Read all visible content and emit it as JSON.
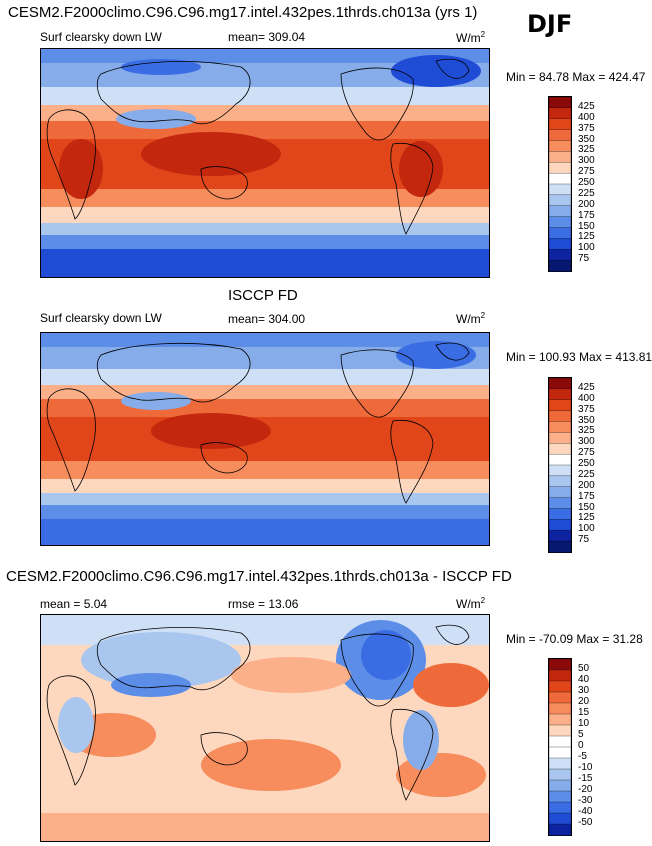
{
  "header": {
    "title": "CESM2.F2000climo.C96.C96.mg17.intel.432pes.1thrds.ch013a (yrs 1)",
    "season": "DJF"
  },
  "panels": [
    {
      "id": "model",
      "subtitle": "",
      "variable": "Surf clearsky down LW",
      "stat_label": "mean= 309.04",
      "units": "W/m",
      "units_sup": "2",
      "minmax": "Min =  84.78 Max = 424.47",
      "colorbar": {
        "levels": [
          "425",
          "400",
          "375",
          "350",
          "325",
          "300",
          "275",
          "250",
          "225",
          "200",
          "175",
          "150",
          "125",
          "100",
          "75"
        ],
        "colors": [
          "#8a0a0a",
          "#c3270e",
          "#e0461a",
          "#ef6a3a",
          "#f78c5c",
          "#fbb08a",
          "#fdd8bf",
          "#ffffff",
          "#cfe0f6",
          "#a9c6ee",
          "#86acea",
          "#5c8de7",
          "#3a6de3",
          "#1f4cd5",
          "#0d23a0",
          "#061870"
        ]
      }
    },
    {
      "id": "obs",
      "subtitle": "ISCCP FD",
      "variable": "Surf clearsky down LW",
      "stat_label": "mean= 304.00",
      "units": "W/m",
      "units_sup": "2",
      "minmax": "Min = 100.93 Max = 413.81",
      "colorbar": {
        "levels": [
          "425",
          "400",
          "375",
          "350",
          "325",
          "300",
          "275",
          "250",
          "225",
          "200",
          "175",
          "150",
          "125",
          "100",
          "75"
        ],
        "colors": [
          "#8a0a0a",
          "#c3270e",
          "#e0461a",
          "#ef6a3a",
          "#f78c5c",
          "#fbb08a",
          "#fdd8bf",
          "#ffffff",
          "#cfe0f6",
          "#a9c6ee",
          "#86acea",
          "#5c8de7",
          "#3a6de3",
          "#1f4cd5",
          "#0d23a0",
          "#061870"
        ]
      }
    },
    {
      "id": "diff",
      "subtitle": "CESM2.F2000climo.C96.C96.mg17.intel.432pes.1thrds.ch013a - ISCCP FD",
      "variable": "mean =   5.04",
      "stat_label": "rmse =  13.06",
      "units": "W/m",
      "units_sup": "2",
      "minmax": "Min = -70.09 Max =  31.28",
      "colorbar": {
        "levels": [
          "50",
          "40",
          "30",
          "20",
          "15",
          "10",
          "5",
          "0",
          "-5",
          "-10",
          "-15",
          "-20",
          "-30",
          "-40",
          "-50"
        ],
        "colors": [
          "#8a0a0a",
          "#c3270e",
          "#e0461a",
          "#ef6a3a",
          "#f78c5c",
          "#fbb08a",
          "#fdd8bf",
          "#ffffff",
          "#ffffff",
          "#cfe0f6",
          "#a9c6ee",
          "#86acea",
          "#5c8de7",
          "#3a6de3",
          "#1f4cd5",
          "#0d23a0"
        ]
      }
    }
  ],
  "chart_data": [
    {
      "type": "heatmap",
      "title": "Surf clearsky down LW",
      "model": "CESM2.F2000climo.C96.C96.mg17.intel.432pes.1thrds.ch013a (yrs 1)",
      "season": "DJF",
      "mean": 309.04,
      "min": 84.78,
      "max": 424.47,
      "units": "W/m2",
      "contour_levels": [
        75,
        100,
        125,
        150,
        175,
        200,
        225,
        250,
        275,
        300,
        325,
        350,
        375,
        400,
        425
      ]
    },
    {
      "type": "heatmap",
      "title": "Surf clearsky down LW",
      "dataset": "ISCCP FD",
      "season": "DJF",
      "mean": 304.0,
      "min": 100.93,
      "max": 413.81,
      "units": "W/m2",
      "contour_levels": [
        75,
        100,
        125,
        150,
        175,
        200,
        225,
        250,
        275,
        300,
        325,
        350,
        375,
        400,
        425
      ]
    },
    {
      "type": "heatmap",
      "title": "CESM2.F2000climo.C96.C96.mg17.intel.432pes.1thrds.ch013a - ISCCP FD",
      "season": "DJF",
      "mean": 5.04,
      "rmse": 13.06,
      "min": -70.09,
      "max": 31.28,
      "units": "W/m2",
      "contour_levels": [
        -50,
        -40,
        -30,
        -20,
        -15,
        -10,
        -5,
        0,
        5,
        10,
        15,
        20,
        30,
        40,
        50
      ]
    }
  ]
}
